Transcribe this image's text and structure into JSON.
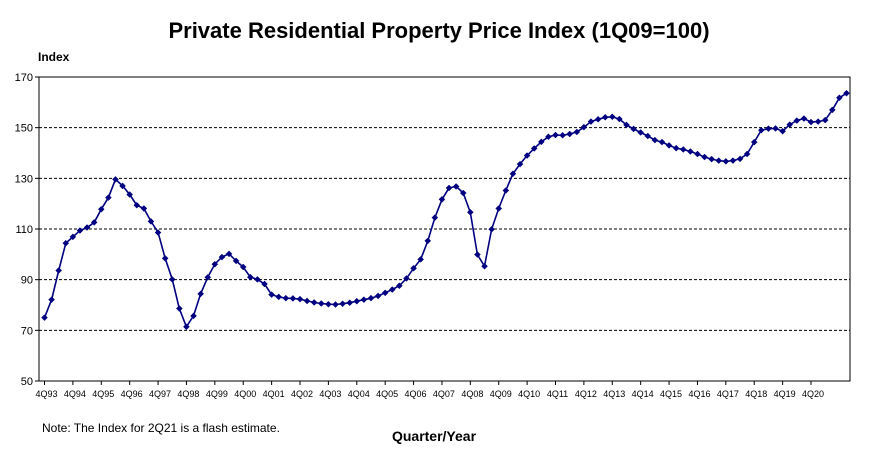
{
  "chart_data": {
    "type": "line",
    "title": "Private Residential Property Price Index (1Q09=100)",
    "ylabel": "Index",
    "xlabel": "Quarter/Year",
    "note": "Note: The Index for 2Q21 is a flash estimate.",
    "ylim": [
      50,
      170
    ],
    "yticks": [
      50,
      70,
      90,
      110,
      130,
      150,
      170
    ],
    "grid": "horizontal dashed",
    "legend": "none",
    "line_color": "#000080",
    "x_tick_labels": [
      "4Q93",
      "4Q94",
      "4Q95",
      "4Q96",
      "4Q97",
      "4Q98",
      "4Q99",
      "4Q00",
      "4Q01",
      "4Q02",
      "4Q03",
      "4Q04",
      "4Q05",
      "4Q06",
      "4Q07",
      "4Q08",
      "4Q09",
      "4Q10",
      "4Q11",
      "4Q12",
      "4Q13",
      "4Q14",
      "4Q15",
      "4Q16",
      "4Q17",
      "4Q18",
      "4Q19",
      "4Q20"
    ],
    "first_quarter": "4Q93",
    "last_quarter": "2Q21",
    "series": [
      {
        "values": [
          75.0,
          82.1,
          93.6,
          104.4,
          106.9,
          109.4,
          110.6,
          112.6,
          117.8,
          122.4,
          129.6,
          127.0,
          123.6,
          119.4,
          118.1,
          113.0,
          108.6,
          98.4,
          90.1,
          78.6,
          71.4,
          75.7,
          84.4,
          90.9,
          96.1,
          98.9,
          100.2,
          97.4,
          95.0,
          91.0,
          90.1,
          88.3,
          84.1,
          83.2,
          82.7,
          82.6,
          82.3,
          81.6,
          81.0,
          80.6,
          80.3,
          80.2,
          80.5,
          80.9,
          81.5,
          82.1,
          82.7,
          83.6,
          84.8,
          86.1,
          87.6,
          90.5,
          94.5,
          98.0,
          105.3,
          114.5,
          121.7,
          126.2,
          126.8,
          124.2,
          116.6,
          99.9,
          95.3,
          109.9,
          118.1,
          125.2,
          131.8,
          135.6,
          139.0,
          141.8,
          144.4,
          146.4,
          147.1,
          147.0,
          147.5,
          148.3,
          150.2,
          152.4,
          153.3,
          154.1,
          154.3,
          153.4,
          151.1,
          149.5,
          148.1,
          146.7,
          145.1,
          144.3,
          143.0,
          141.9,
          141.4,
          140.6,
          139.6,
          138.4,
          137.6,
          137.0,
          136.7,
          137.0,
          137.7,
          139.6,
          144.3,
          149.0,
          149.6,
          149.7,
          148.6,
          151.2,
          152.8,
          153.6,
          152.2,
          152.4,
          153.0,
          157.0,
          161.8,
          163.6
        ]
      }
    ]
  }
}
